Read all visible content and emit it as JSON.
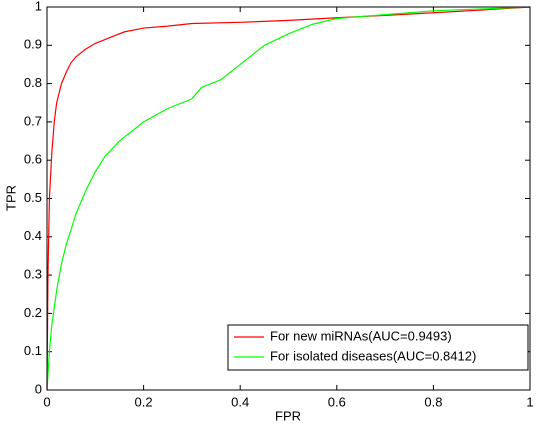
{
  "chart_data": {
    "type": "line",
    "xlabel": "FPR",
    "ylabel": "TPR",
    "xlim": [
      0,
      1
    ],
    "ylim": [
      0,
      1
    ],
    "xticks": [
      0,
      0.2,
      0.4,
      0.6,
      0.8,
      1
    ],
    "yticks": [
      0,
      0.1,
      0.2,
      0.3,
      0.4,
      0.5,
      0.6,
      0.7,
      0.8,
      0.9,
      1
    ],
    "legend": "lower right",
    "series": [
      {
        "name": "For new miRNAs(AUC=0.9493)",
        "color": "#ff0000",
        "x": [
          0,
          0.002,
          0.005,
          0.01,
          0.015,
          0.02,
          0.03,
          0.04,
          0.05,
          0.06,
          0.08,
          0.1,
          0.12,
          0.14,
          0.16,
          0.2,
          0.25,
          0.3,
          0.4,
          0.5,
          0.6,
          0.7,
          0.8,
          0.9,
          1
        ],
        "values": [
          0,
          0.3,
          0.5,
          0.62,
          0.7,
          0.75,
          0.8,
          0.83,
          0.855,
          0.87,
          0.89,
          0.905,
          0.915,
          0.925,
          0.935,
          0.945,
          0.95,
          0.957,
          0.96,
          0.965,
          0.972,
          0.978,
          0.985,
          0.992,
          1
        ]
      },
      {
        "name": "For isolated diseases(AUC=0.8412)",
        "color": "#00ff00",
        "x": [
          0,
          0.005,
          0.01,
          0.02,
          0.03,
          0.04,
          0.05,
          0.06,
          0.08,
          0.1,
          0.12,
          0.15,
          0.18,
          0.2,
          0.25,
          0.3,
          0.32,
          0.36,
          0.4,
          0.42,
          0.45,
          0.5,
          0.55,
          0.6,
          0.7,
          0.8,
          0.9,
          1
        ],
        "values": [
          0,
          0.1,
          0.17,
          0.26,
          0.33,
          0.38,
          0.42,
          0.46,
          0.52,
          0.57,
          0.61,
          0.65,
          0.68,
          0.7,
          0.735,
          0.76,
          0.79,
          0.81,
          0.85,
          0.87,
          0.9,
          0.93,
          0.955,
          0.97,
          0.98,
          0.99,
          0.995,
          1
        ]
      }
    ]
  }
}
